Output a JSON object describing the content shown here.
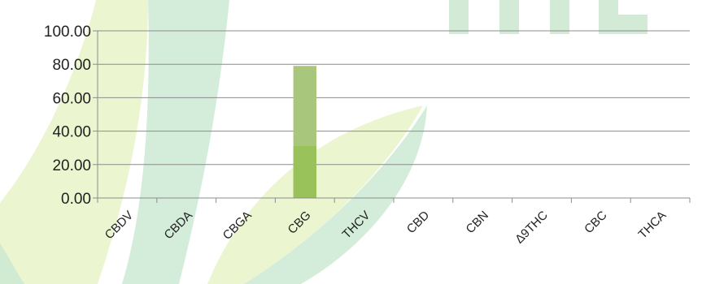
{
  "chart_data": {
    "type": "bar",
    "title": "",
    "xlabel": "",
    "ylabel": "",
    "categories": [
      "CBDV",
      "CBDA",
      "CBGA",
      "CBG",
      "THCV",
      "CBD",
      "CBN",
      "Δ9THC",
      "CBC",
      "THCA"
    ],
    "series": [
      {
        "values": [
          0,
          0,
          0,
          79,
          0,
          0,
          0,
          0,
          0,
          0
        ]
      }
    ],
    "ylim": [
      0,
      100
    ],
    "yticks": [
      "0.00",
      "20.00",
      "40.00",
      "60.00",
      "80.00",
      "100.00"
    ],
    "grid": true,
    "legend": "none",
    "colors": {
      "bar": "#a8c67c",
      "bar_overlap": "#8cc040",
      "grid": "#8c8c8c",
      "axis": "#8c8c8c",
      "leaf_light": "#e6f2c4",
      "leaf_green": "#cde9d4"
    }
  }
}
